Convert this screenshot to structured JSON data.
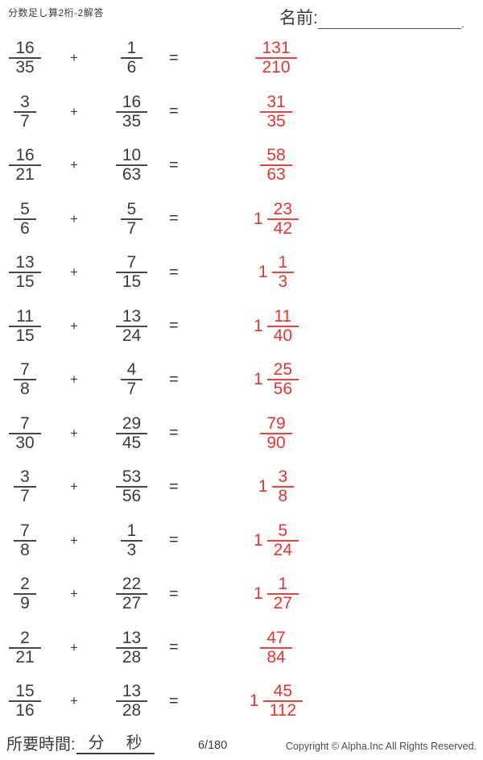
{
  "header": {
    "title": "分数足し算2桁-2解答",
    "name_label": "名前:",
    "name_line_end": "."
  },
  "problems": [
    {
      "a_num": "16",
      "a_den": "35",
      "op": "+",
      "b_num": "1",
      "b_den": "6",
      "eq": "=",
      "ans_whole": "",
      "ans_num": "131",
      "ans_den": "210"
    },
    {
      "a_num": "3",
      "a_den": "7",
      "op": "+",
      "b_num": "16",
      "b_den": "35",
      "eq": "=",
      "ans_whole": "",
      "ans_num": "31",
      "ans_den": "35"
    },
    {
      "a_num": "16",
      "a_den": "21",
      "op": "+",
      "b_num": "10",
      "b_den": "63",
      "eq": "=",
      "ans_whole": "",
      "ans_num": "58",
      "ans_den": "63"
    },
    {
      "a_num": "5",
      "a_den": "6",
      "op": "+",
      "b_num": "5",
      "b_den": "7",
      "eq": "=",
      "ans_whole": "1",
      "ans_num": "23",
      "ans_den": "42"
    },
    {
      "a_num": "13",
      "a_den": "15",
      "op": "+",
      "b_num": "7",
      "b_den": "15",
      "eq": "=",
      "ans_whole": "1",
      "ans_num": "1",
      "ans_den": "3"
    },
    {
      "a_num": "11",
      "a_den": "15",
      "op": "+",
      "b_num": "13",
      "b_den": "24",
      "eq": "=",
      "ans_whole": "1",
      "ans_num": "11",
      "ans_den": "40"
    },
    {
      "a_num": "7",
      "a_den": "8",
      "op": "+",
      "b_num": "4",
      "b_den": "7",
      "eq": "=",
      "ans_whole": "1",
      "ans_num": "25",
      "ans_den": "56"
    },
    {
      "a_num": "7",
      "a_den": "30",
      "op": "+",
      "b_num": "29",
      "b_den": "45",
      "eq": "=",
      "ans_whole": "",
      "ans_num": "79",
      "ans_den": "90"
    },
    {
      "a_num": "3",
      "a_den": "7",
      "op": "+",
      "b_num": "53",
      "b_den": "56",
      "eq": "=",
      "ans_whole": "1",
      "ans_num": "3",
      "ans_den": "8"
    },
    {
      "a_num": "7",
      "a_den": "8",
      "op": "+",
      "b_num": "1",
      "b_den": "3",
      "eq": "=",
      "ans_whole": "1",
      "ans_num": "5",
      "ans_den": "24"
    },
    {
      "a_num": "2",
      "a_den": "9",
      "op": "+",
      "b_num": "22",
      "b_den": "27",
      "eq": "=",
      "ans_whole": "1",
      "ans_num": "1",
      "ans_den": "27"
    },
    {
      "a_num": "2",
      "a_den": "21",
      "op": "+",
      "b_num": "13",
      "b_den": "28",
      "eq": "=",
      "ans_whole": "",
      "ans_num": "47",
      "ans_den": "84"
    },
    {
      "a_num": "15",
      "a_den": "16",
      "op": "+",
      "b_num": "13",
      "b_den": "28",
      "eq": "=",
      "ans_whole": "1",
      "ans_num": "45",
      "ans_den": "112"
    }
  ],
  "footer": {
    "time_label": "所要時間:",
    "minutes_label": "分",
    "seconds_label": "秒",
    "page": "6/180",
    "copyright": "Copyright ©  Alpha.Inc All Rights Reserved."
  },
  "colors": {
    "answer_red": "#e8342e",
    "text_dark": "#3f3a38"
  }
}
